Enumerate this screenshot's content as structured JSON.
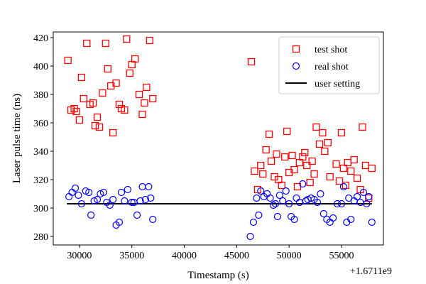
{
  "chart_data": {
    "type": "scatter",
    "title": "",
    "xlabel": "Timestamp (s)",
    "ylabel": "Laser pulse time (ns)",
    "x_offset_label": "+1.6711e9",
    "xlim": [
      27500,
      59000
    ],
    "ylim": [
      274,
      424
    ],
    "xticks": [
      30000,
      35000,
      40000,
      45000,
      50000,
      55000
    ],
    "yticks": [
      280,
      300,
      320,
      340,
      360,
      380,
      400,
      420
    ],
    "grid": false,
    "legend_position": "top-right",
    "series": [
      {
        "name": "test shot",
        "marker": "square",
        "color": "#ff0000",
        "points": [
          [
            28900,
            404
          ],
          [
            29200,
            369
          ],
          [
            29500,
            370
          ],
          [
            29700,
            368
          ],
          [
            30000,
            362
          ],
          [
            30200,
            392
          ],
          [
            30400,
            377
          ],
          [
            30700,
            416
          ],
          [
            31000,
            373
          ],
          [
            31300,
            374
          ],
          [
            31500,
            358
          ],
          [
            31700,
            364
          ],
          [
            31900,
            357
          ],
          [
            32200,
            381
          ],
          [
            32500,
            416
          ],
          [
            32700,
            398
          ],
          [
            33000,
            386
          ],
          [
            33200,
            353
          ],
          [
            33500,
            388
          ],
          [
            33800,
            373
          ],
          [
            34000,
            370
          ],
          [
            34300,
            369
          ],
          [
            34500,
            419
          ],
          [
            34800,
            395
          ],
          [
            35000,
            401
          ],
          [
            35300,
            405
          ],
          [
            35700,
            380
          ],
          [
            36000,
            366
          ],
          [
            36200,
            374
          ],
          [
            36400,
            385
          ],
          [
            36700,
            418
          ],
          [
            37000,
            377
          ],
          [
            46400,
            403
          ],
          [
            46700,
            326
          ],
          [
            47000,
            313
          ],
          [
            47300,
            330
          ],
          [
            47500,
            324
          ],
          [
            47800,
            341
          ],
          [
            48100,
            352
          ],
          [
            48300,
            333
          ],
          [
            48600,
            322
          ],
          [
            48800,
            338
          ],
          [
            49000,
            320
          ],
          [
            49300,
            316
          ],
          [
            49600,
            336
          ],
          [
            49800,
            354
          ],
          [
            50000,
            325
          ],
          [
            50300,
            337
          ],
          [
            50500,
            327
          ],
          [
            50800,
            315
          ],
          [
            51000,
            332
          ],
          [
            51300,
            336
          ],
          [
            51500,
            339
          ],
          [
            51700,
            330
          ],
          [
            52000,
            318
          ],
          [
            52200,
            333
          ],
          [
            52400,
            324
          ],
          [
            52600,
            357
          ],
          [
            52900,
            345
          ],
          [
            53200,
            353
          ],
          [
            53400,
            340
          ],
          [
            53700,
            346
          ],
          [
            53900,
            322
          ],
          [
            54500,
            331
          ],
          [
            54800,
            319
          ],
          [
            55000,
            353
          ],
          [
            55200,
            328
          ],
          [
            55400,
            316
          ],
          [
            55600,
            332
          ],
          [
            55900,
            326
          ],
          [
            56200,
            334
          ],
          [
            56500,
            321
          ],
          [
            56800,
            313
          ],
          [
            57000,
            357
          ],
          [
            57300,
            330
          ],
          [
            57600,
            307
          ],
          [
            57900,
            328
          ]
        ]
      },
      {
        "name": "real shot",
        "marker": "circle",
        "color": "#0000ff",
        "points": [
          [
            29000,
            308
          ],
          [
            29300,
            311
          ],
          [
            29600,
            314
          ],
          [
            29900,
            309
          ],
          [
            30200,
            303
          ],
          [
            30600,
            312
          ],
          [
            30900,
            311
          ],
          [
            31100,
            295
          ],
          [
            31400,
            305
          ],
          [
            31700,
            306
          ],
          [
            32000,
            310
          ],
          [
            32300,
            311
          ],
          [
            32600,
            304
          ],
          [
            32900,
            302
          ],
          [
            33200,
            306
          ],
          [
            33500,
            288
          ],
          [
            33800,
            290
          ],
          [
            34000,
            311
          ],
          [
            34300,
            305
          ],
          [
            34600,
            313
          ],
          [
            35000,
            304
          ],
          [
            35200,
            304
          ],
          [
            35500,
            295
          ],
          [
            35800,
            305
          ],
          [
            36000,
            315
          ],
          [
            36300,
            306
          ],
          [
            36600,
            315
          ],
          [
            36800,
            307
          ],
          [
            37000,
            292
          ],
          [
            46300,
            280
          ],
          [
            46600,
            290
          ],
          [
            46900,
            307
          ],
          [
            47100,
            295
          ],
          [
            47300,
            312
          ],
          [
            47600,
            308
          ],
          [
            47900,
            310
          ],
          [
            48200,
            307
          ],
          [
            48500,
            302
          ],
          [
            48700,
            303
          ],
          [
            48900,
            294
          ],
          [
            49100,
            309
          ],
          [
            49400,
            305
          ],
          [
            49700,
            312
          ],
          [
            50000,
            303
          ],
          [
            50200,
            294
          ],
          [
            50500,
            292
          ],
          [
            50700,
            307
          ],
          [
            51000,
            304
          ],
          [
            51300,
            317
          ],
          [
            51600,
            305
          ],
          [
            51800,
            306
          ],
          [
            52100,
            307
          ],
          [
            52400,
            306
          ],
          [
            52700,
            304
          ],
          [
            53000,
            310
          ],
          [
            53300,
            296
          ],
          [
            53600,
            292
          ],
          [
            53900,
            290
          ],
          [
            54200,
            293
          ],
          [
            54600,
            303
          ],
          [
            55000,
            303
          ],
          [
            55200,
            315
          ],
          [
            55500,
            290
          ],
          [
            55700,
            307
          ],
          [
            55900,
            292
          ],
          [
            56200,
            305
          ],
          [
            56500,
            308
          ],
          [
            56800,
            304
          ],
          [
            57100,
            311
          ],
          [
            57400,
            303
          ],
          [
            57600,
            308
          ],
          [
            57900,
            290
          ]
        ]
      },
      {
        "name": "user setting",
        "marker": "line",
        "color": "#000000",
        "x": [
          28800,
          57900
        ],
        "y": [
          303,
          303
        ]
      }
    ]
  }
}
